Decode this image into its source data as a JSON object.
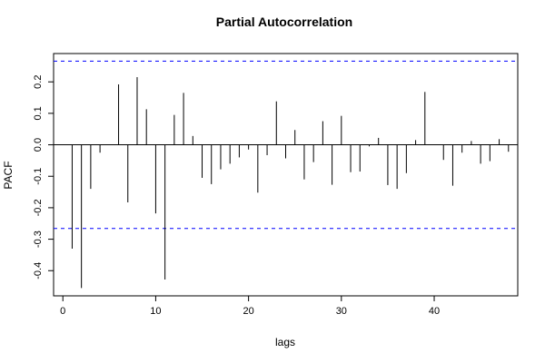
{
  "chart_data": {
    "type": "bar",
    "title": "Partial Autocorrelation",
    "xlabel": "lags",
    "ylabel": "PACF",
    "xlim": [
      -1,
      49
    ],
    "ylim": [
      -0.48,
      0.29
    ],
    "xticks": [
      0,
      10,
      20,
      30,
      40
    ],
    "yticks": [
      -0.4,
      -0.3,
      -0.2,
      -0.1,
      0.0,
      0.1,
      0.2
    ],
    "ytick_labels": [
      "-0.4",
      "-0.3",
      "-0.2",
      "-0.1",
      "0.0",
      "0.1",
      "0.2"
    ],
    "confidence_bound": 0.266,
    "bound_color": "#0000ff",
    "bar_color": "#000000",
    "lags": [
      1,
      2,
      3,
      4,
      5,
      6,
      7,
      8,
      9,
      10,
      11,
      12,
      13,
      14,
      15,
      16,
      17,
      18,
      19,
      20,
      21,
      22,
      23,
      24,
      25,
      26,
      27,
      28,
      29,
      30,
      31,
      32,
      33,
      34,
      35,
      36,
      37,
      38,
      39,
      40,
      41,
      42,
      43,
      44,
      45,
      46,
      47,
      48
    ],
    "values": [
      -0.33,
      -0.455,
      -0.14,
      -0.025,
      0.0,
      0.192,
      -0.183,
      0.215,
      0.113,
      -0.218,
      -0.428,
      0.095,
      0.165,
      0.028,
      -0.105,
      -0.125,
      -0.078,
      -0.06,
      -0.04,
      -0.015,
      -0.152,
      -0.033,
      0.138,
      -0.043,
      0.047,
      -0.11,
      -0.055,
      0.075,
      -0.127,
      0.092,
      -0.087,
      -0.085,
      -0.005,
      0.022,
      -0.128,
      -0.14,
      -0.09,
      0.015,
      0.168,
      0.0,
      -0.048,
      -0.13,
      -0.025,
      0.012,
      -0.06,
      -0.052,
      0.018,
      -0.022
    ]
  }
}
